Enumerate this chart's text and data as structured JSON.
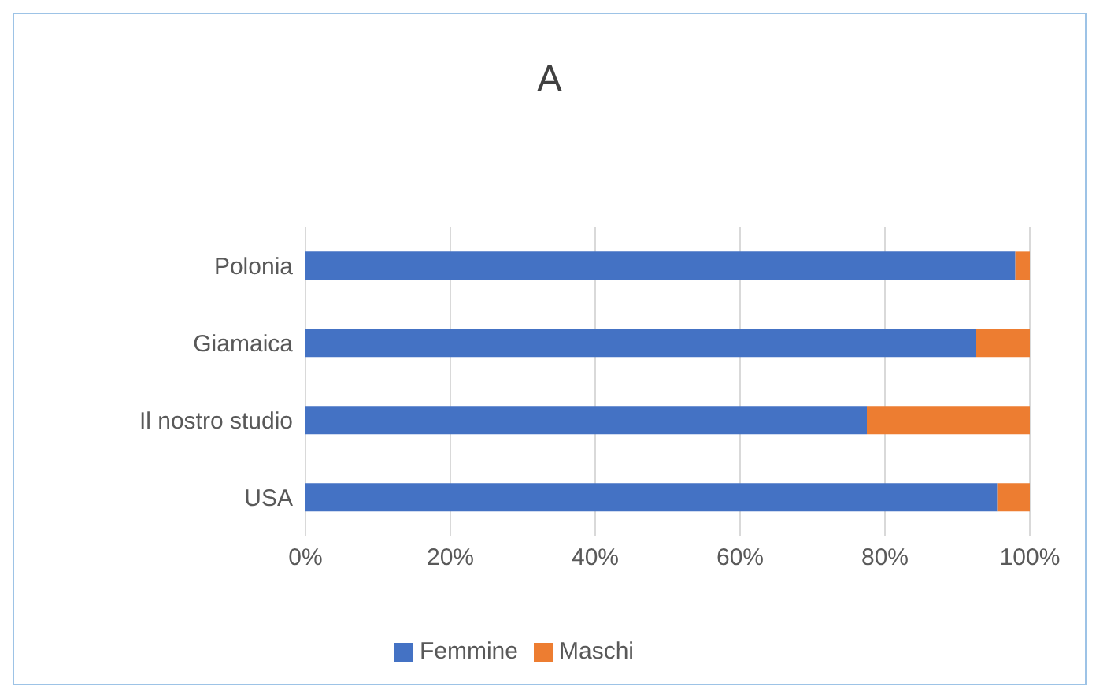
{
  "chart_data": {
    "type": "bar",
    "title": "A",
    "orientation": "horizontal",
    "stacked": true,
    "categories": [
      "Polonia",
      "Giamaica",
      "Il nostro studio",
      "USA"
    ],
    "series": [
      {
        "name": "Femmine",
        "color": "#4472c4",
        "values": [
          98,
          92.5,
          77.5,
          95.5
        ]
      },
      {
        "name": "Maschi",
        "color": "#ed7d31",
        "values": [
          2,
          7.5,
          22.5,
          4.5
        ]
      }
    ],
    "xlim": [
      0,
      100
    ],
    "xticks": [
      {
        "value": 0,
        "label": "0%"
      },
      {
        "value": 20,
        "label": "20%"
      },
      {
        "value": 40,
        "label": "40%"
      },
      {
        "value": 60,
        "label": "60%"
      },
      {
        "value": 80,
        "label": "80%"
      },
      {
        "value": 100,
        "label": "100%"
      }
    ],
    "grid": "x",
    "legend": "bottom"
  }
}
